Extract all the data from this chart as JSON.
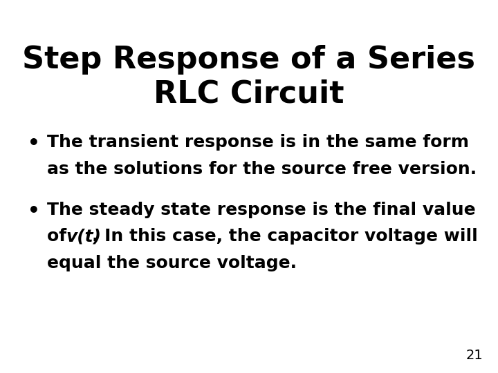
{
  "title_line1": "Step Response of a Series",
  "title_line2": "RLC Circuit",
  "title_fontsize": 32,
  "title_fontweight": "bold",
  "title_color": "#000000",
  "background_color": "#ffffff",
  "bullet_fontsize": 18,
  "bullet_fontweight": "bold",
  "bullet_color": "#000000",
  "page_number": "21",
  "page_number_fontsize": 14,
  "bullet1_line1": "The transient response is in the same form",
  "bullet1_line2": "as the solutions for the source free version.",
  "bullet2_line1": "The steady state response is the final value",
  "bullet2_line2_pre": "of ",
  "bullet2_line2_italic": "v(t)",
  "bullet2_line2_post": ". In this case, the capacitor voltage will",
  "bullet2_line3": "equal the source voltage."
}
